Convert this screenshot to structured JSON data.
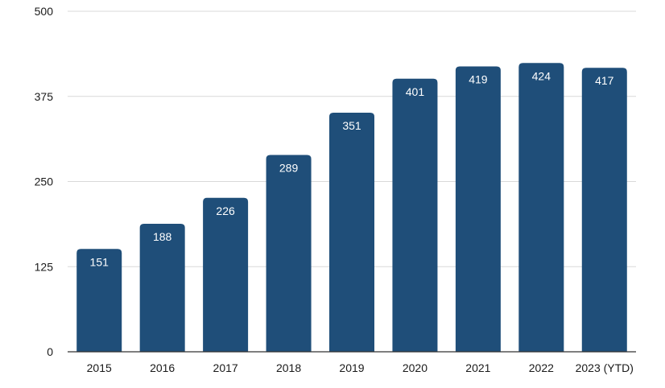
{
  "chart_data": {
    "type": "bar",
    "categories": [
      "2015",
      "2016",
      "2017",
      "2018",
      "2019",
      "2020",
      "2021",
      "2022",
      "2023 (YTD)"
    ],
    "values": [
      151,
      188,
      226,
      289,
      351,
      401,
      419,
      424,
      417
    ],
    "data_labels": [
      "151",
      "188",
      "226",
      "289",
      "351",
      "401",
      "419",
      "424",
      "417"
    ],
    "y_ticks": [
      0,
      125,
      250,
      375,
      500
    ],
    "y_tick_labels": [
      "0",
      "125",
      "250",
      "375",
      "500"
    ],
    "ylim": [
      0,
      500
    ],
    "title": "",
    "xlabel": "",
    "ylabel": "",
    "grid": true,
    "legend": "none",
    "colors": {
      "bar": "#1f4e79",
      "label": "#ffffff",
      "grid": "#d9d9d9"
    }
  }
}
